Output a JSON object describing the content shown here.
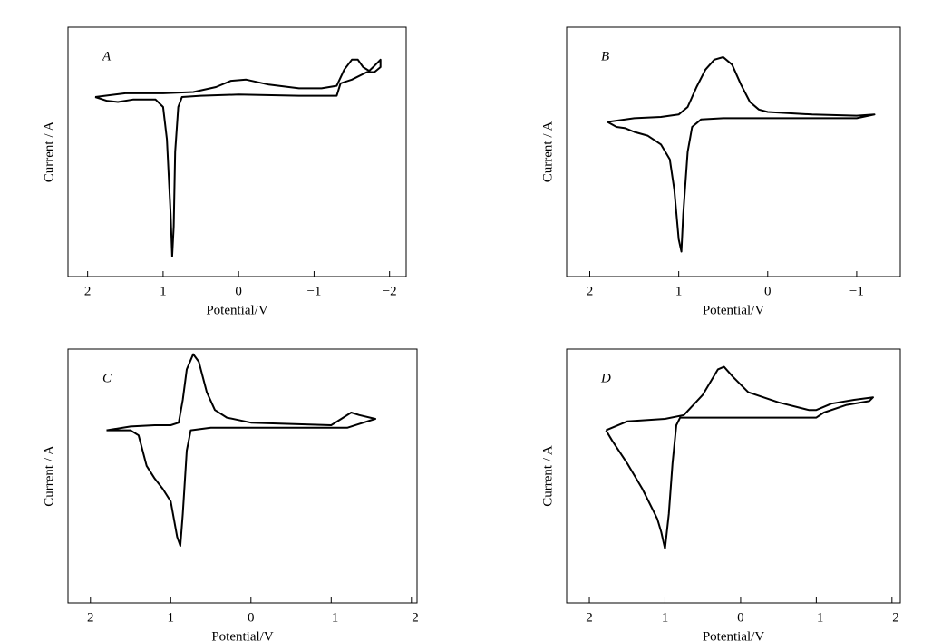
{
  "chart_data": [
    {
      "type": "line",
      "label": "A",
      "xlabel": "Potential/V",
      "ylabel": "Current / A",
      "color": "#000000",
      "xlim": [
        2.26,
        -2.22
      ],
      "ylim": [
        0,
        100
      ],
      "xticks": [
        2,
        1,
        0,
        {
          "value": -1,
          "label": "−1"
        },
        {
          "value": -2,
          "label": "−2"
        }
      ],
      "x": [
        1.9,
        1.5,
        1.0,
        0.6,
        0.3,
        0.1,
        -0.1,
        -0.4,
        -0.8,
        -1.1,
        -1.3,
        -1.4,
        -1.5,
        -1.58,
        -1.65,
        -1.73,
        -1.8,
        -1.88,
        -1.88,
        -1.8,
        -1.7,
        -1.5,
        -1.35,
        -1.3,
        -0.8,
        0,
        0.5,
        0.75,
        0.8,
        0.84,
        0.86,
        0.88,
        0.9,
        0.95,
        1.0,
        1.1,
        1.4,
        1.6,
        1.75,
        1.9
      ],
      "values": [
        72,
        73.5,
        73.5,
        74,
        76,
        78.5,
        79,
        77,
        75.5,
        75.5,
        76.5,
        83,
        87,
        87,
        84,
        82.5,
        84.5,
        87,
        84,
        82,
        82,
        79,
        77.5,
        72.5,
        72.5,
        73,
        72.5,
        72,
        68,
        50,
        20,
        8,
        25,
        55,
        68,
        71,
        71,
        70,
        70.5,
        72
      ]
    },
    {
      "type": "line",
      "label": "B",
      "xlabel": "Potential/V",
      "ylabel": "Current / A",
      "color": "#000000",
      "xlim": [
        2.26,
        -1.49
      ],
      "ylim": [
        0,
        100
      ],
      "xticks": [
        2,
        1,
        0,
        {
          "value": -1,
          "label": "−1"
        }
      ],
      "x": [
        1.8,
        1.5,
        1.2,
        1.0,
        0.9,
        0.8,
        0.7,
        0.6,
        0.5,
        0.4,
        0.3,
        0.2,
        0.1,
        0,
        -0.5,
        -1.0,
        -1.2,
        -1.0,
        -0.5,
        0,
        0.5,
        0.75,
        0.85,
        0.9,
        0.95,
        0.97,
        1.0,
        1.05,
        1.1,
        1.2,
        1.35,
        1.5,
        1.6,
        1.7,
        1.8
      ],
      "values": [
        62,
        63.5,
        64,
        65,
        68,
        76,
        83,
        87,
        88,
        85,
        77,
        70,
        67,
        66,
        65,
        64.5,
        65,
        63.5,
        63.5,
        63.5,
        63.5,
        63,
        60,
        50,
        25,
        10,
        15,
        35,
        47,
        53,
        56.5,
        58,
        59.5,
        60,
        62
      ]
    },
    {
      "type": "line",
      "label": "C",
      "xlabel": "Potential/V",
      "ylabel": "Current / A",
      "color": "#000000",
      "xlim": [
        2.28,
        -2.07
      ],
      "ylim": [
        0,
        100
      ],
      "xticks": [
        2,
        1,
        0,
        {
          "value": -1,
          "label": "−1"
        },
        {
          "value": -2,
          "label": "−2"
        }
      ],
      "x": [
        1.8,
        1.5,
        1.2,
        1.0,
        0.9,
        0.85,
        0.8,
        0.72,
        0.65,
        0.55,
        0.45,
        0.3,
        0,
        -0.5,
        -1.0,
        -1.15,
        -1.25,
        -1.35,
        -1.55,
        -1.35,
        -1.2,
        -1.1,
        -0.5,
        0,
        0.5,
        0.75,
        0.8,
        0.85,
        0.88,
        0.92,
        1.0,
        1.1,
        1.2,
        1.3,
        1.4,
        1.5,
        1.8
      ],
      "values": [
        68,
        69.5,
        70,
        70,
        71,
        80,
        92,
        98,
        95,
        83,
        76,
        73,
        71,
        70.5,
        70,
        73,
        75,
        74,
        72.5,
        70.5,
        69,
        69,
        69,
        69,
        69,
        68,
        60,
        35,
        22.5,
        26,
        40,
        45,
        49,
        54,
        66,
        68,
        68
      ]
    },
    {
      "type": "line",
      "label": "D",
      "xlabel": "Potential/V",
      "ylabel": "Current / A",
      "color": "#000000",
      "xlim": [
        2.3,
        -2.11
      ],
      "ylim": [
        0,
        100
      ],
      "xticks": [
        2,
        1,
        0,
        {
          "value": -1,
          "label": "−1"
        },
        {
          "value": -2,
          "label": "−2"
        }
      ],
      "x": [
        1.78,
        1.5,
        1.0,
        0.75,
        0.5,
        0.3,
        0.22,
        0.1,
        -0.1,
        -0.5,
        -0.9,
        -1.0,
        -1.2,
        -1.5,
        -1.75,
        -1.7,
        -1.4,
        -1.1,
        -1.0,
        -0.5,
        0,
        0.5,
        0.8,
        0.85,
        0.9,
        0.95,
        1.0,
        1.05,
        1.1,
        1.15,
        1.3,
        1.5,
        1.7,
        1.78
      ],
      "values": [
        68,
        71.5,
        72.5,
        74,
        82,
        92,
        93,
        89,
        83,
        79,
        76,
        76,
        78.5,
        80,
        81,
        79.5,
        78,
        75,
        73,
        73,
        73,
        73,
        73,
        70,
        55,
        35,
        21.4,
        28,
        33,
        36,
        45,
        55,
        64,
        68
      ]
    }
  ]
}
